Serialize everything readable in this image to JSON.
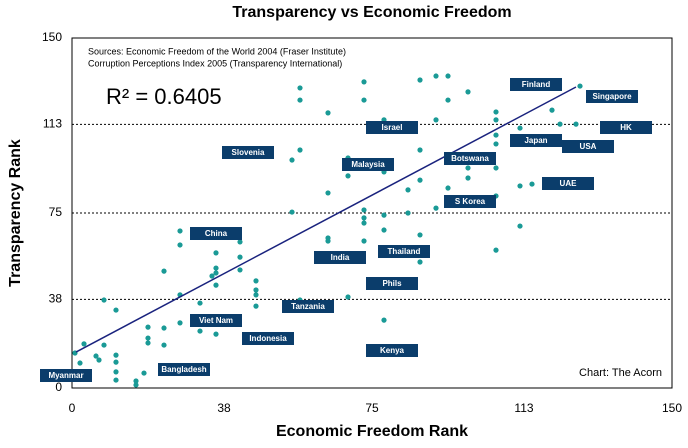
{
  "chart_data": {
    "type": "scatter",
    "title": "Transparency vs Economic Freedom",
    "xlabel": "Economic Freedom Rank",
    "ylabel": "Transparency Rank",
    "xlim": [
      0,
      150
    ],
    "ylim": [
      0,
      150
    ],
    "xticks": [
      0,
      38,
      75,
      113,
      150
    ],
    "yticks": [
      0,
      38,
      75,
      113,
      150
    ],
    "grid": true,
    "color": "#1a9a96",
    "x": [
      0.75,
      3,
      2,
      6,
      6.75,
      8,
      8,
      11,
      11,
      11,
      11,
      11,
      16,
      16,
      18,
      19,
      19,
      19,
      23,
      23,
      23,
      27,
      27,
      27,
      27,
      32,
      32,
      35,
      36,
      36,
      36,
      36,
      36,
      42,
      42,
      42,
      46,
      46,
      46,
      46,
      55,
      55,
      57,
      57,
      57,
      57,
      64,
      64,
      64,
      64,
      69,
      69,
      69,
      73,
      73,
      73,
      73,
      73,
      73,
      78,
      78,
      78,
      78,
      78,
      84,
      84,
      87,
      87,
      87,
      87,
      87,
      91,
      91,
      91,
      94,
      94,
      94,
      94,
      94,
      99,
      99,
      99,
      99,
      106,
      106,
      106,
      106,
      106,
      106,
      106,
      112,
      112,
      112,
      115,
      120,
      122,
      127,
      126
    ],
    "y": [
      15,
      18.9,
      10.7,
      13.7,
      12,
      18.4,
      37.7,
      33.4,
      14.1,
      11.1,
      6.9,
      3.4,
      3,
      1.3,
      6.4,
      26.1,
      21.4,
      19.3,
      50.1,
      25.7,
      18.4,
      67.3,
      61.3,
      39.9,
      27.9,
      36.4,
      24.4,
      48,
      57.9,
      51.4,
      49.3,
      44.1,
      23.1,
      62.6,
      56.1,
      50.6,
      45.9,
      42,
      39.9,
      35.1,
      75.4,
      97.7,
      128.6,
      123.4,
      102,
      37.7,
      117.9,
      83.6,
      64.3,
      63,
      98.6,
      90.9,
      39,
      76.3,
      72.9,
      70.7,
      63,
      131.2,
      123.4,
      74.1,
      67.7,
      29.1,
      114.9,
      92.6,
      75,
      84.9,
      89.1,
      65.6,
      54,
      132,
      102,
      133.7,
      114.9,
      77.1,
      133.7,
      123.4,
      85.7,
      80.6,
      78.4,
      126.9,
      94.3,
      90,
      80.6,
      118.3,
      114.9,
      108.4,
      104.6,
      94.3,
      82.3,
      59.1,
      111.4,
      86.6,
      69.4,
      87.4,
      119.1,
      113.1,
      129.4,
      113.1
    ],
    "trendline": {
      "x": [
        1,
        126
      ],
      "y": [
        15.4,
        129
      ],
      "color": "#1a237e"
    },
    "r_squared": "R² = 0.6405",
    "sources": [
      "Sources: Economic Freedom of the World 2004 (Fraser Institute)",
      "Corruption Perceptions Index 2005 (Transparency International)"
    ],
    "credit": "Chart: The Acorn",
    "labels": [
      "Myanmar",
      "Bangladesh",
      "Indonesia",
      "Kenya",
      "Viet Nam",
      "Tanzania",
      "Phils",
      "China",
      "India",
      "Thailand",
      "Slovenia",
      "Malaysia",
      "Israel",
      "Botswana",
      "S Korea",
      "UAE",
      "Finland",
      "Singapore",
      "HK",
      "Japan",
      "USA"
    ],
    "label_color": "#0b3d6b"
  }
}
